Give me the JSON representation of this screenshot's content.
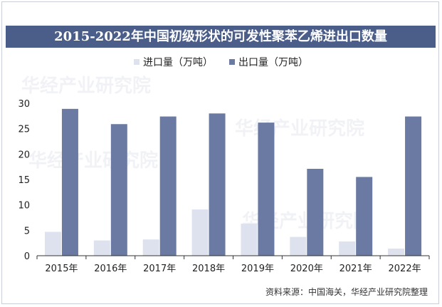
{
  "title": "2015-2022年中国初级形状的可发性聚苯乙烯进出口数量",
  "source": "资料来源：中国海关，华经产业研究院整理",
  "watermark": "华经产业研究院",
  "colors": {
    "title_bg": "#4b5e8a",
    "import": "#dde2ee",
    "export": "#6a7aa2",
    "axis": "#333333"
  },
  "chart_data": {
    "type": "bar",
    "title": "2015-2022年中国初级形状的可发性聚苯乙烯进出口数量",
    "categories": [
      "2015年",
      "2016年",
      "2017年",
      "2018年",
      "2019年",
      "2020年",
      "2021年",
      "2022年"
    ],
    "series": [
      {
        "name": "进口量（万吨）",
        "values": [
          4.7,
          3.0,
          3.2,
          9.1,
          6.3,
          3.7,
          2.8,
          1.4
        ]
      },
      {
        "name": "出口量（万吨）",
        "values": [
          28.9,
          25.9,
          27.4,
          28.0,
          26.2,
          17.1,
          15.5,
          27.4
        ]
      }
    ],
    "ylim": [
      0,
      30
    ],
    "yticks": [
      0,
      5,
      10,
      15,
      20,
      25,
      30
    ],
    "legend_position": "top-center",
    "grid": false
  }
}
